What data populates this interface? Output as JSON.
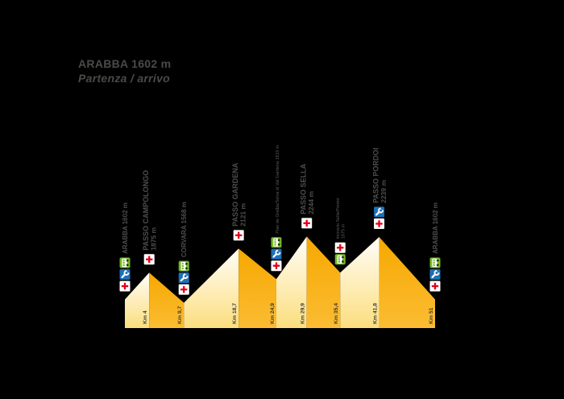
{
  "title": {
    "line1": "ARABBA 1602 m",
    "line2": "Partenza / arrivo"
  },
  "colors": {
    "background": "#000000",
    "climb_top": "#fffefa",
    "climb_bottom": "#fcde7e",
    "descent_top": "#f6a800",
    "descent_bottom": "#fbbc33",
    "label_text": "#4e4e4d",
    "minor_label_text": "#5a5a58",
    "km_text": "#3a3a38",
    "cross_red": "#e2001a",
    "cross_bg": "#ffffff",
    "wrench_blue": "#1d71b8",
    "bus_green": "#76b82a",
    "bus_dark": "#1f2d12",
    "title_text": "#4a4a48"
  },
  "icon_names": {
    "bus": "shuttle-bus-icon",
    "wrench": "mechanic-assistance-icon",
    "cross": "medical-assistance-icon"
  },
  "chart_data": {
    "type": "area",
    "title": "ARABBA 1602 m — Partenza / arrivo",
    "xlabel": "Km",
    "ylabel": "m",
    "x_km": [
      0,
      4,
      9.7,
      18.7,
      24.9,
      29.9,
      35.4,
      41.8,
      51
    ],
    "elevation_m": [
      1602,
      1875,
      1568,
      2121,
      1810,
      2244,
      1875,
      2239,
      1602
    ],
    "xlim_km": [
      0,
      51
    ],
    "baseline_elevation_m": 1310,
    "grid": "off",
    "legend": "none",
    "segment_types": [
      "climb",
      "descent",
      "climb",
      "descent",
      "climb",
      "descent",
      "climb",
      "descent"
    ],
    "km_labels": [
      "Km 4",
      "Km 9,7",
      "Km 18,7",
      "Km 24,9",
      "Km 29,9",
      "Km 35,4",
      "Km 41,8",
      "Km 51"
    ],
    "waypoints": [
      {
        "name": "ARABBA 1602 m",
        "elev": "",
        "style": "major",
        "icons": [
          "bus",
          "wrench",
          "cross"
        ]
      },
      {
        "name": "PASSO CAMPOLONGO",
        "elev": "1875 m",
        "style": "major",
        "icons": [
          "cross"
        ]
      },
      {
        "name": "CORVARA 1568 m",
        "elev": "",
        "style": "major",
        "icons": [
          "bus",
          "wrench",
          "cross"
        ]
      },
      {
        "name": "PASSO GARDENA",
        "elev": "2121 m",
        "style": "major",
        "icons": [
          "cross"
        ]
      },
      {
        "name": "Plan de Gralba/Selva di Val Gardena 1810 m",
        "elev": "",
        "style": "minor",
        "icons": [
          "bus",
          "wrench",
          "cross"
        ]
      },
      {
        "name": "PASSO SELLA",
        "elev": "2244 m",
        "style": "major",
        "icons": [
          "cross"
        ]
      },
      {
        "name": "Incrocio Sella/Pordoi",
        "elev": "1875 m",
        "style": "minor",
        "icons": [
          "cross",
          "bus"
        ]
      },
      {
        "name": "PASSO PORDOI",
        "elev": "2239 m",
        "style": "major",
        "icons": [
          "wrench",
          "cross"
        ]
      },
      {
        "name": "ARABBA 1602 m",
        "elev": "",
        "style": "major",
        "icons": [
          "bus",
          "wrench",
          "cross"
        ]
      }
    ]
  }
}
